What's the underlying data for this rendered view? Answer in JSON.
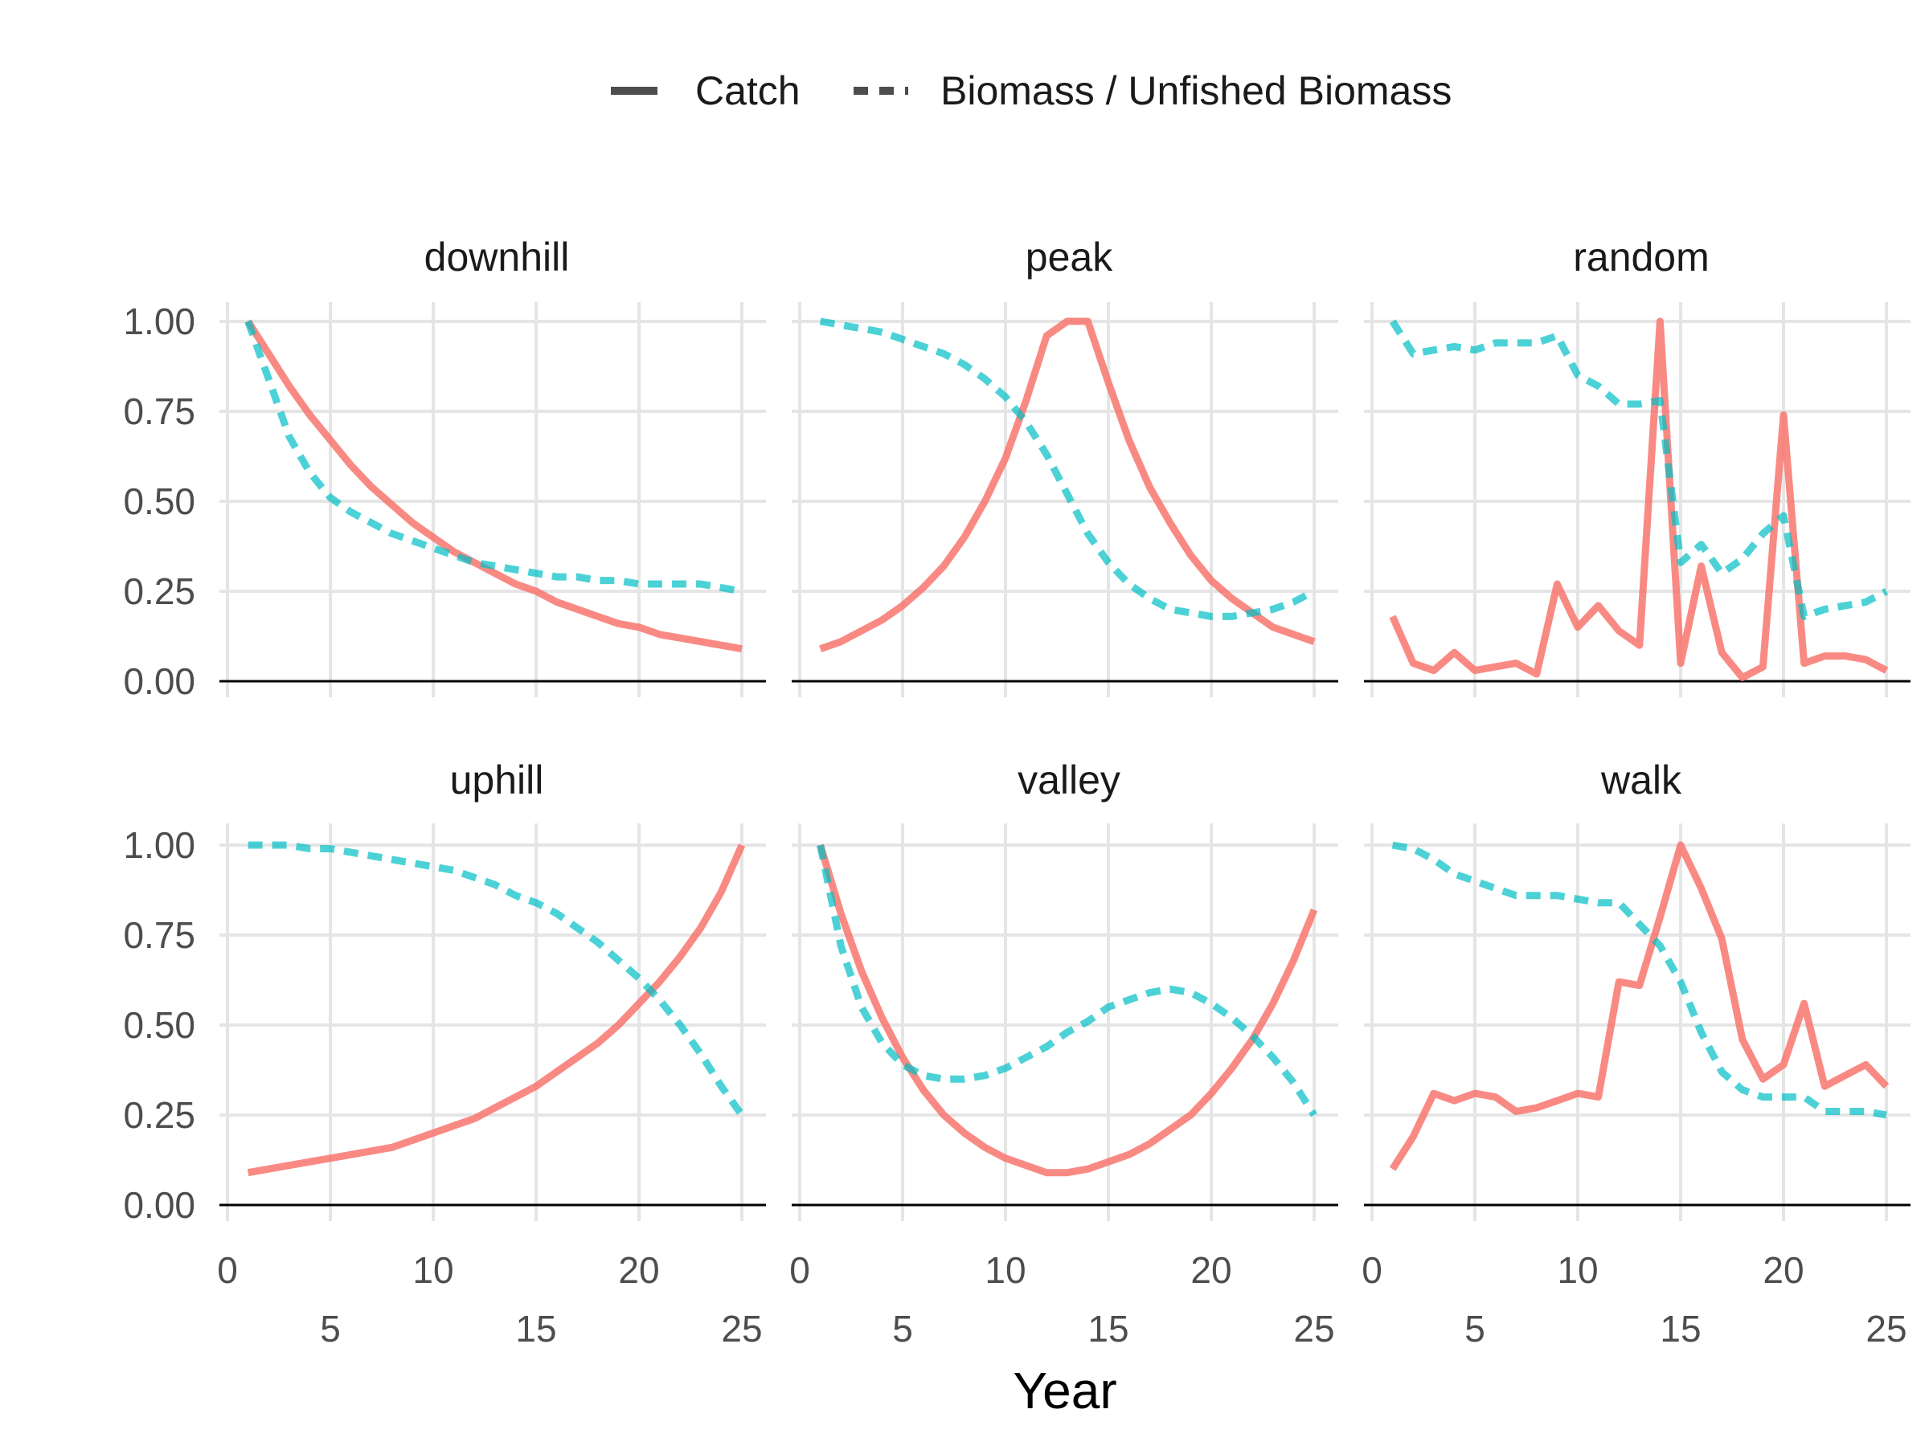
{
  "chart_data": {
    "type": "line",
    "xlabel": "Year",
    "ylabel": "",
    "xlim": [
      0,
      25
    ],
    "ylim": [
      0,
      1
    ],
    "x_major_ticks": [
      0,
      10,
      20
    ],
    "x_minor_ticks": [
      5,
      15,
      25
    ],
    "y_ticks": [
      "0.00",
      "0.25",
      "0.50",
      "0.75",
      "1.00"
    ],
    "grid": true,
    "legend_position": "top",
    "legend": [
      {
        "name": "Catch",
        "style": "solid"
      },
      {
        "name": "Biomass / Unfished Biomass",
        "style": "dashed"
      }
    ],
    "colors": {
      "catch": "#F8766D",
      "biomass": "#00BFC4",
      "zero_line": "#000000",
      "grid": "#E5E5E5"
    },
    "x": [
      1,
      2,
      3,
      4,
      5,
      6,
      7,
      8,
      9,
      10,
      11,
      12,
      13,
      14,
      15,
      16,
      17,
      18,
      19,
      20,
      21,
      22,
      23,
      24,
      25
    ],
    "panels": [
      {
        "title": "downhill",
        "catch": [
          1.0,
          0.91,
          0.82,
          0.74,
          0.67,
          0.6,
          0.54,
          0.49,
          0.44,
          0.4,
          0.36,
          0.33,
          0.3,
          0.27,
          0.25,
          0.22,
          0.2,
          0.18,
          0.16,
          0.15,
          0.13,
          0.12,
          0.11,
          0.1,
          0.09
        ],
        "biomass": [
          1.0,
          0.84,
          0.68,
          0.58,
          0.51,
          0.47,
          0.44,
          0.41,
          0.39,
          0.37,
          0.35,
          0.33,
          0.32,
          0.31,
          0.3,
          0.29,
          0.29,
          0.28,
          0.28,
          0.27,
          0.27,
          0.27,
          0.27,
          0.26,
          0.25
        ]
      },
      {
        "title": "peak",
        "catch": [
          0.09,
          0.11,
          0.14,
          0.17,
          0.21,
          0.26,
          0.32,
          0.4,
          0.5,
          0.62,
          0.78,
          0.96,
          1.0,
          1.0,
          0.83,
          0.67,
          0.54,
          0.44,
          0.35,
          0.28,
          0.23,
          0.19,
          0.15,
          0.13,
          0.11
        ],
        "biomass": [
          1.0,
          0.99,
          0.98,
          0.97,
          0.95,
          0.93,
          0.91,
          0.88,
          0.84,
          0.79,
          0.72,
          0.63,
          0.52,
          0.41,
          0.33,
          0.27,
          0.23,
          0.2,
          0.19,
          0.18,
          0.18,
          0.19,
          0.2,
          0.22,
          0.25
        ]
      },
      {
        "title": "random",
        "catch": [
          0.18,
          0.05,
          0.03,
          0.08,
          0.03,
          0.04,
          0.05,
          0.02,
          0.27,
          0.15,
          0.21,
          0.14,
          0.1,
          1.0,
          0.05,
          0.32,
          0.08,
          0.01,
          0.04,
          0.74,
          0.05,
          0.07,
          0.07,
          0.06,
          0.03
        ],
        "biomass": [
          1.0,
          0.91,
          0.92,
          0.93,
          0.92,
          0.94,
          0.94,
          0.94,
          0.96,
          0.85,
          0.82,
          0.77,
          0.77,
          0.78,
          0.33,
          0.38,
          0.3,
          0.34,
          0.41,
          0.46,
          0.18,
          0.2,
          0.21,
          0.22,
          0.25
        ]
      },
      {
        "title": "uphill",
        "catch": [
          0.09,
          0.1,
          0.11,
          0.12,
          0.13,
          0.14,
          0.15,
          0.16,
          0.18,
          0.2,
          0.22,
          0.24,
          0.27,
          0.3,
          0.33,
          0.37,
          0.41,
          0.45,
          0.5,
          0.56,
          0.62,
          0.69,
          0.77,
          0.87,
          1.0
        ],
        "biomass": [
          1.0,
          1.0,
          1.0,
          0.99,
          0.99,
          0.98,
          0.97,
          0.96,
          0.95,
          0.94,
          0.93,
          0.91,
          0.89,
          0.86,
          0.84,
          0.81,
          0.77,
          0.73,
          0.68,
          0.63,
          0.57,
          0.5,
          0.42,
          0.33,
          0.25
        ]
      },
      {
        "title": "valley",
        "catch": [
          1.0,
          0.81,
          0.65,
          0.52,
          0.41,
          0.32,
          0.25,
          0.2,
          0.16,
          0.13,
          0.11,
          0.09,
          0.09,
          0.1,
          0.12,
          0.14,
          0.17,
          0.21,
          0.25,
          0.31,
          0.38,
          0.46,
          0.56,
          0.68,
          0.82
        ],
        "biomass": [
          1.0,
          0.72,
          0.55,
          0.45,
          0.39,
          0.36,
          0.35,
          0.35,
          0.36,
          0.38,
          0.41,
          0.44,
          0.48,
          0.51,
          0.55,
          0.57,
          0.59,
          0.6,
          0.59,
          0.56,
          0.52,
          0.47,
          0.41,
          0.34,
          0.25
        ]
      },
      {
        "title": "walk",
        "catch": [
          0.1,
          0.19,
          0.31,
          0.29,
          0.31,
          0.3,
          0.26,
          0.27,
          0.29,
          0.31,
          0.3,
          0.62,
          0.61,
          0.8,
          1.0,
          0.88,
          0.74,
          0.46,
          0.35,
          0.39,
          0.56,
          0.33,
          0.36,
          0.39,
          0.33
        ],
        "biomass": [
          1.0,
          0.99,
          0.96,
          0.92,
          0.9,
          0.88,
          0.86,
          0.86,
          0.86,
          0.85,
          0.84,
          0.84,
          0.78,
          0.72,
          0.62,
          0.48,
          0.37,
          0.32,
          0.3,
          0.3,
          0.3,
          0.26,
          0.26,
          0.26,
          0.25
        ]
      }
    ]
  }
}
